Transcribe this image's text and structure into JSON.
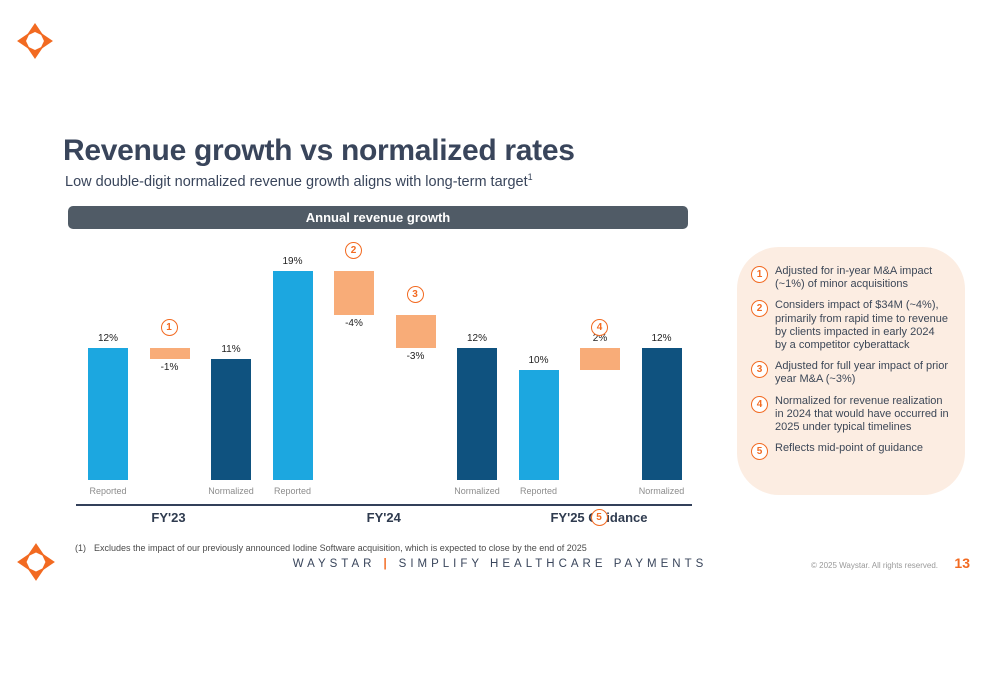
{
  "slide": {
    "title": "Revenue growth vs normalized rates",
    "subtitle": "Low double-digit normalized revenue growth aligns with long-term target",
    "subtitle_sup": "1",
    "footnote_marker": "(1)",
    "footnote_text": "Excludes the impact of our previously announced Iodine Software acquisition, which is expected to close by the end of 2025",
    "footer_brand": "WAYSTAR",
    "footer_separator": "|",
    "footer_tagline": "SIMPLIFY HEALTHCARE PAYMENTS",
    "copyright": "© 2025 Waystar. All rights reserved.",
    "page_number": "13"
  },
  "colors": {
    "light_blue": "#1CA7E0",
    "dark_blue": "#0F527F",
    "orange_bar": "#F8AC78",
    "accent_orange": "#F26A21",
    "callout_bg": "#FCEDE2",
    "banner_bg": "#505B66",
    "title_color": "#39455B",
    "text_gray": "#8C8C8C"
  },
  "chart_data": {
    "type": "bar",
    "subtype": "waterfall",
    "title": "Annual revenue growth",
    "unit": "%",
    "ylim": [
      0,
      20
    ],
    "grid": false,
    "legend": false,
    "groups": [
      {
        "label": "FY'23",
        "bars": [
          {
            "kind": "solid",
            "palette": "light_blue",
            "value": 12,
            "label": "12%",
            "sub": "Reported"
          },
          {
            "kind": "bridge",
            "from": 12,
            "to": 11,
            "label": "-1%",
            "annotation": "1"
          },
          {
            "kind": "solid",
            "palette": "dark_blue",
            "value": 11,
            "label": "11%",
            "sub": "Normalized"
          }
        ]
      },
      {
        "label": "FY'24",
        "bars": [
          {
            "kind": "solid",
            "palette": "light_blue",
            "value": 19,
            "label": "19%",
            "sub": "Reported"
          },
          {
            "kind": "bridge",
            "from": 19,
            "to": 15,
            "label": "-4%",
            "annotation": "2"
          },
          {
            "kind": "bridge",
            "from": 15,
            "to": 12,
            "label": "-3%",
            "annotation": "3"
          },
          {
            "kind": "solid",
            "palette": "dark_blue",
            "value": 12,
            "label": "12%",
            "sub": "Normalized"
          }
        ]
      },
      {
        "label": "FY'25 Guidance",
        "annotation": "5",
        "bars": [
          {
            "kind": "solid",
            "palette": "light_blue",
            "value": 10,
            "label": "10%",
            "sub": "Reported"
          },
          {
            "kind": "bridge",
            "from": 10,
            "to": 12,
            "label": "2%",
            "annotation": "4"
          },
          {
            "kind": "solid",
            "palette": "dark_blue",
            "value": 12,
            "label": "12%",
            "sub": "Normalized"
          }
        ]
      }
    ]
  },
  "callouts": [
    {
      "num": "1",
      "text": "Adjusted for in-year M&A impact (~1%) of minor acquisitions"
    },
    {
      "num": "2",
      "text": "Considers impact of $34M (~4%), primarily from rapid time to revenue by clients impacted in early 2024 by a competitor cyberattack"
    },
    {
      "num": "3",
      "text": "Adjusted for full year impact of prior year M&A (~3%)"
    },
    {
      "num": "4",
      "text": "Normalized for revenue realization in 2024 that would have occurred in 2025 under typical timelines"
    },
    {
      "num": "5",
      "text": "Reflects mid-point of guidance"
    }
  ]
}
